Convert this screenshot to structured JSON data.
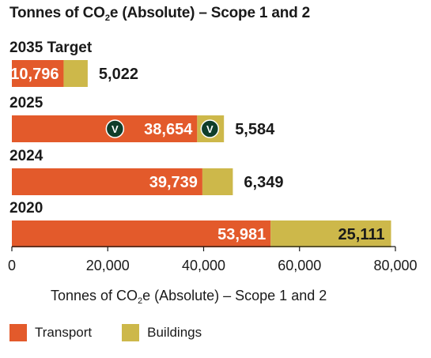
{
  "title": {
    "pre": "Tonnes of CO",
    "sub": "2",
    "post": "e (Absolute) – Scope 1 and 2"
  },
  "colors": {
    "transport": "#e35a2b",
    "buildings": "#cdb84a",
    "badge": "#0f3d2a"
  },
  "badge_glyph": "V",
  "chart_data": {
    "type": "bar",
    "orientation": "horizontal",
    "stacked": true,
    "categories": [
      "2035 Target",
      "2025",
      "2024",
      "2020"
    ],
    "series": [
      {
        "name": "Transport",
        "values": [
          10796,
          38654,
          39739,
          53981
        ],
        "labels": [
          "10,796",
          "38,654",
          "39,739",
          "53,981"
        ]
      },
      {
        "name": "Buildings",
        "values": [
          5022,
          5584,
          6349,
          25111
        ],
        "labels": [
          "5,022",
          "5,584",
          "6,349",
          "25,111"
        ]
      }
    ],
    "xlim": [
      0,
      80000
    ],
    "xticks": [
      "0",
      "20,000",
      "40,000",
      "60,000",
      "80,000"
    ],
    "xtick_values": [
      0,
      20000,
      40000,
      60000,
      80000
    ],
    "badged_category": "2025",
    "xlabel": {
      "pre": "Tonnes of CO",
      "sub": "2",
      "post": "e (Absolute) – Scope 1 and 2"
    },
    "legend": [
      "Transport",
      "Buildings"
    ],
    "legend_position": "bottom-left"
  }
}
